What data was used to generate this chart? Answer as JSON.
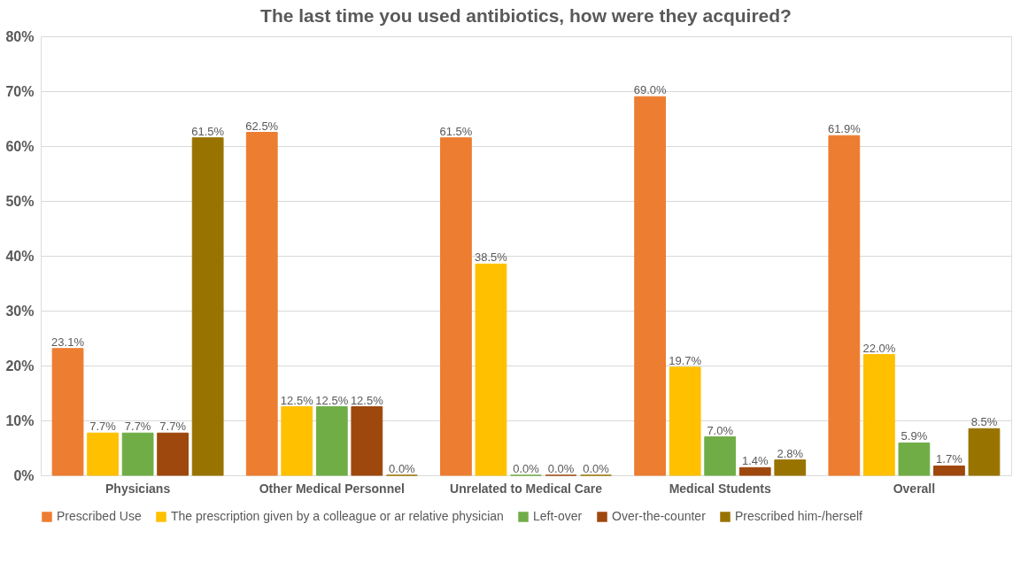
{
  "chart_data": {
    "type": "bar",
    "title": "The last time you used antibiotics, how were they acquired?",
    "categories": [
      "Physicians",
      "Other Medical Personnel",
      "Unrelated to Medical Care",
      "Medical Students",
      "Overall"
    ],
    "series": [
      {
        "name": "Prescribed Use",
        "color": "#ed7d31",
        "values": [
          23.1,
          62.5,
          61.5,
          69.0,
          61.9
        ],
        "value_labels": [
          "23.1%",
          "62.5%",
          "61.5%",
          "69.0%",
          "61.9%"
        ]
      },
      {
        "name": "The prescription given by a colleague or ar relative physician",
        "color": "#ffc000",
        "values": [
          7.7,
          12.5,
          38.5,
          19.7,
          22.0
        ],
        "value_labels": [
          "7.7%",
          "12.5%",
          "38.5%",
          "19.7%",
          "22.0%"
        ]
      },
      {
        "name": "Left-over",
        "color": "#70ad47",
        "values": [
          7.7,
          12.5,
          0.0,
          7.0,
          5.9
        ],
        "value_labels": [
          "7.7%",
          "12.5%",
          "0.0%",
          "7.0%",
          "5.9%"
        ]
      },
      {
        "name": "Over-the-counter",
        "color": "#9e480e",
        "values": [
          7.7,
          12.5,
          0.0,
          1.4,
          1.7
        ],
        "value_labels": [
          "7.7%",
          "12.5%",
          "0.0%",
          "1.4%",
          "1.7%"
        ]
      },
      {
        "name": "Prescribed him-/herself",
        "color": "#997300",
        "values": [
          61.5,
          0.0,
          0.0,
          2.8,
          8.5
        ],
        "value_labels": [
          "61.5%",
          "0.0%",
          "0.0%",
          "2.8%",
          "8.5%"
        ]
      }
    ],
    "ylim": [
      0,
      80
    ],
    "yticks": [
      {
        "value": 0,
        "label": "0%"
      },
      {
        "value": 10,
        "label": "10%"
      },
      {
        "value": 20,
        "label": "20%"
      },
      {
        "value": 30,
        "label": "30%"
      },
      {
        "value": 40,
        "label": "40%"
      },
      {
        "value": 50,
        "label": "50%"
      },
      {
        "value": 60,
        "label": "60%"
      },
      {
        "value": 70,
        "label": "70%"
      },
      {
        "value": 80,
        "label": "80%"
      }
    ],
    "grid": "y",
    "legend": "bottom"
  }
}
